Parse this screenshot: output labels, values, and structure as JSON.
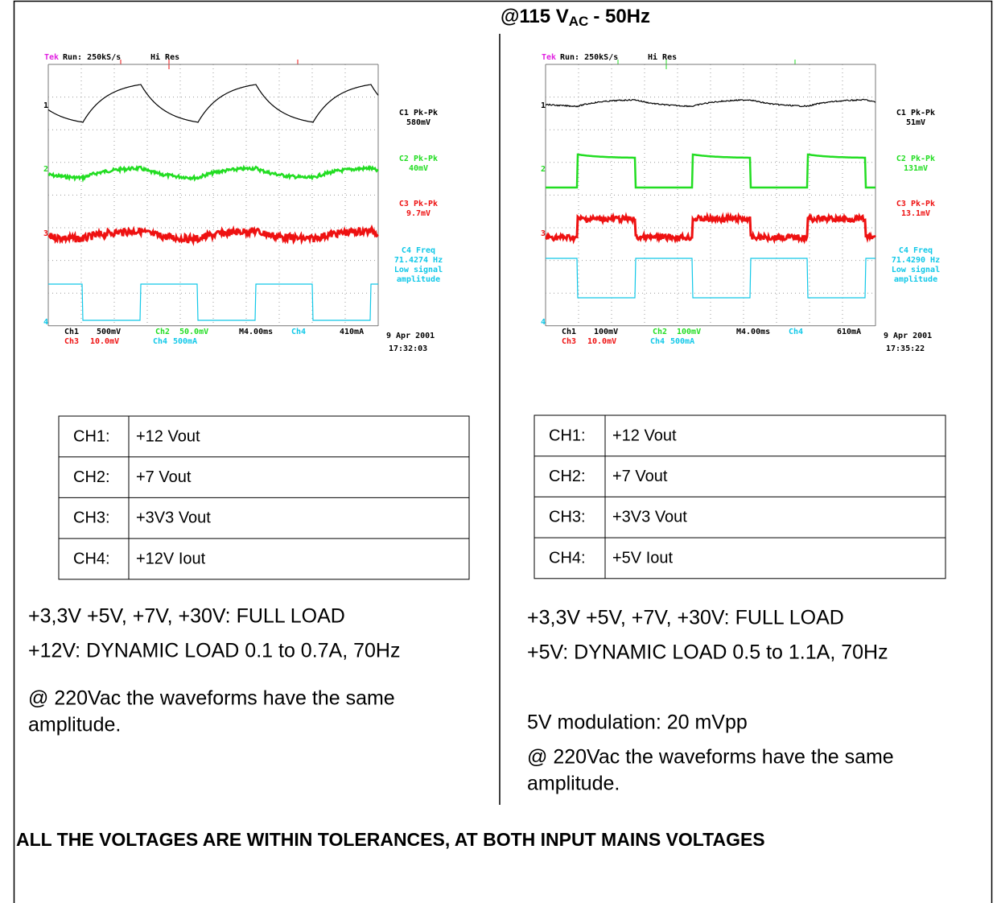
{
  "title": {
    "main": "@115 V",
    "subscript": "AC",
    "suffix": "- 50Hz"
  },
  "channel_colors": [
    "#000000",
    "#22dd22",
    "#ee1111",
    "#11c8e8"
  ],
  "panels": [
    {
      "scope": {
        "brand": "Tek",
        "run": "Run: 250kS/s",
        "mode": "Hi Res",
        "markers": [
          "1",
          "2",
          "3",
          "4"
        ],
        "measurements": [
          [
            "C1 Pk-Pk",
            "580mV"
          ],
          [
            "C2 Pk-Pk",
            "40mV"
          ],
          [
            "C3 Pk-Pk",
            "9.7mV"
          ],
          [
            "C4 Freq",
            "71.4274 Hz",
            "Low signal",
            "amplitude"
          ]
        ],
        "settings_row1": [
          "Ch1",
          "500mV",
          "Ch2",
          "50.0mV",
          "M4.00ms",
          "Ch4",
          "410mA"
        ],
        "settings_row2": [
          "Ch3",
          "10.0mV",
          "Ch4",
          "500mA"
        ],
        "date": "9 Apr 2001",
        "time": "17:32:03"
      },
      "table": [
        [
          "CH1:",
          "+12 Vout"
        ],
        [
          "CH2:",
          "+7 Vout"
        ],
        [
          "CH3:",
          "+3V3 Vout"
        ],
        [
          "CH4:",
          "+12V Iout"
        ]
      ],
      "notes": [
        "+3,3V +5V, +7V,  +30V: FULL LOAD",
        "+12V: DYNAMIC LOAD 0.1 to 0.7A, 70Hz",
        "@ 220Vac the waveforms have the same",
        "amplitude."
      ]
    },
    {
      "scope": {
        "brand": "Tek",
        "run": "Run: 250kS/s",
        "mode": "Hi Res",
        "markers": [
          "1",
          "2",
          "3",
          "4"
        ],
        "measurements": [
          [
            "C1 Pk-Pk",
            "51mV"
          ],
          [
            "C2 Pk-Pk",
            "131mV"
          ],
          [
            "C3 Pk-Pk",
            "13.1mV"
          ],
          [
            "C4 Freq",
            "71.4290 Hz",
            "Low signal",
            "amplitude"
          ]
        ],
        "settings_row1": [
          "Ch1",
          "100mV",
          "Ch2",
          "100mV",
          "M4.00ms",
          "Ch4",
          "610mA"
        ],
        "settings_row2": [
          "Ch3",
          "10.0mV",
          "Ch4",
          "500mA"
        ],
        "date": "9 Apr 2001",
        "time": "17:35:22"
      },
      "table": [
        [
          "CH1:",
          "+12 Vout"
        ],
        [
          "CH2:",
          "+7 Vout"
        ],
        [
          "CH3:",
          "+3V3 Vout"
        ],
        [
          "CH4:",
          "+5V Iout"
        ]
      ],
      "notes": [
        "+3,3V +5V, +7V,  +30V: FULL LOAD",
        "+5V: DYNAMIC LOAD 0.5 to 1.1A, 70Hz",
        "5V modulation: 20 mVpp",
        "@ 220Vac the waveforms have the same",
        "amplitude."
      ]
    }
  ],
  "footer": "ALL THE VOLTAGES ARE WITHIN TOLERANCES, AT BOTH INPUT MAINS VOLTAGES"
}
